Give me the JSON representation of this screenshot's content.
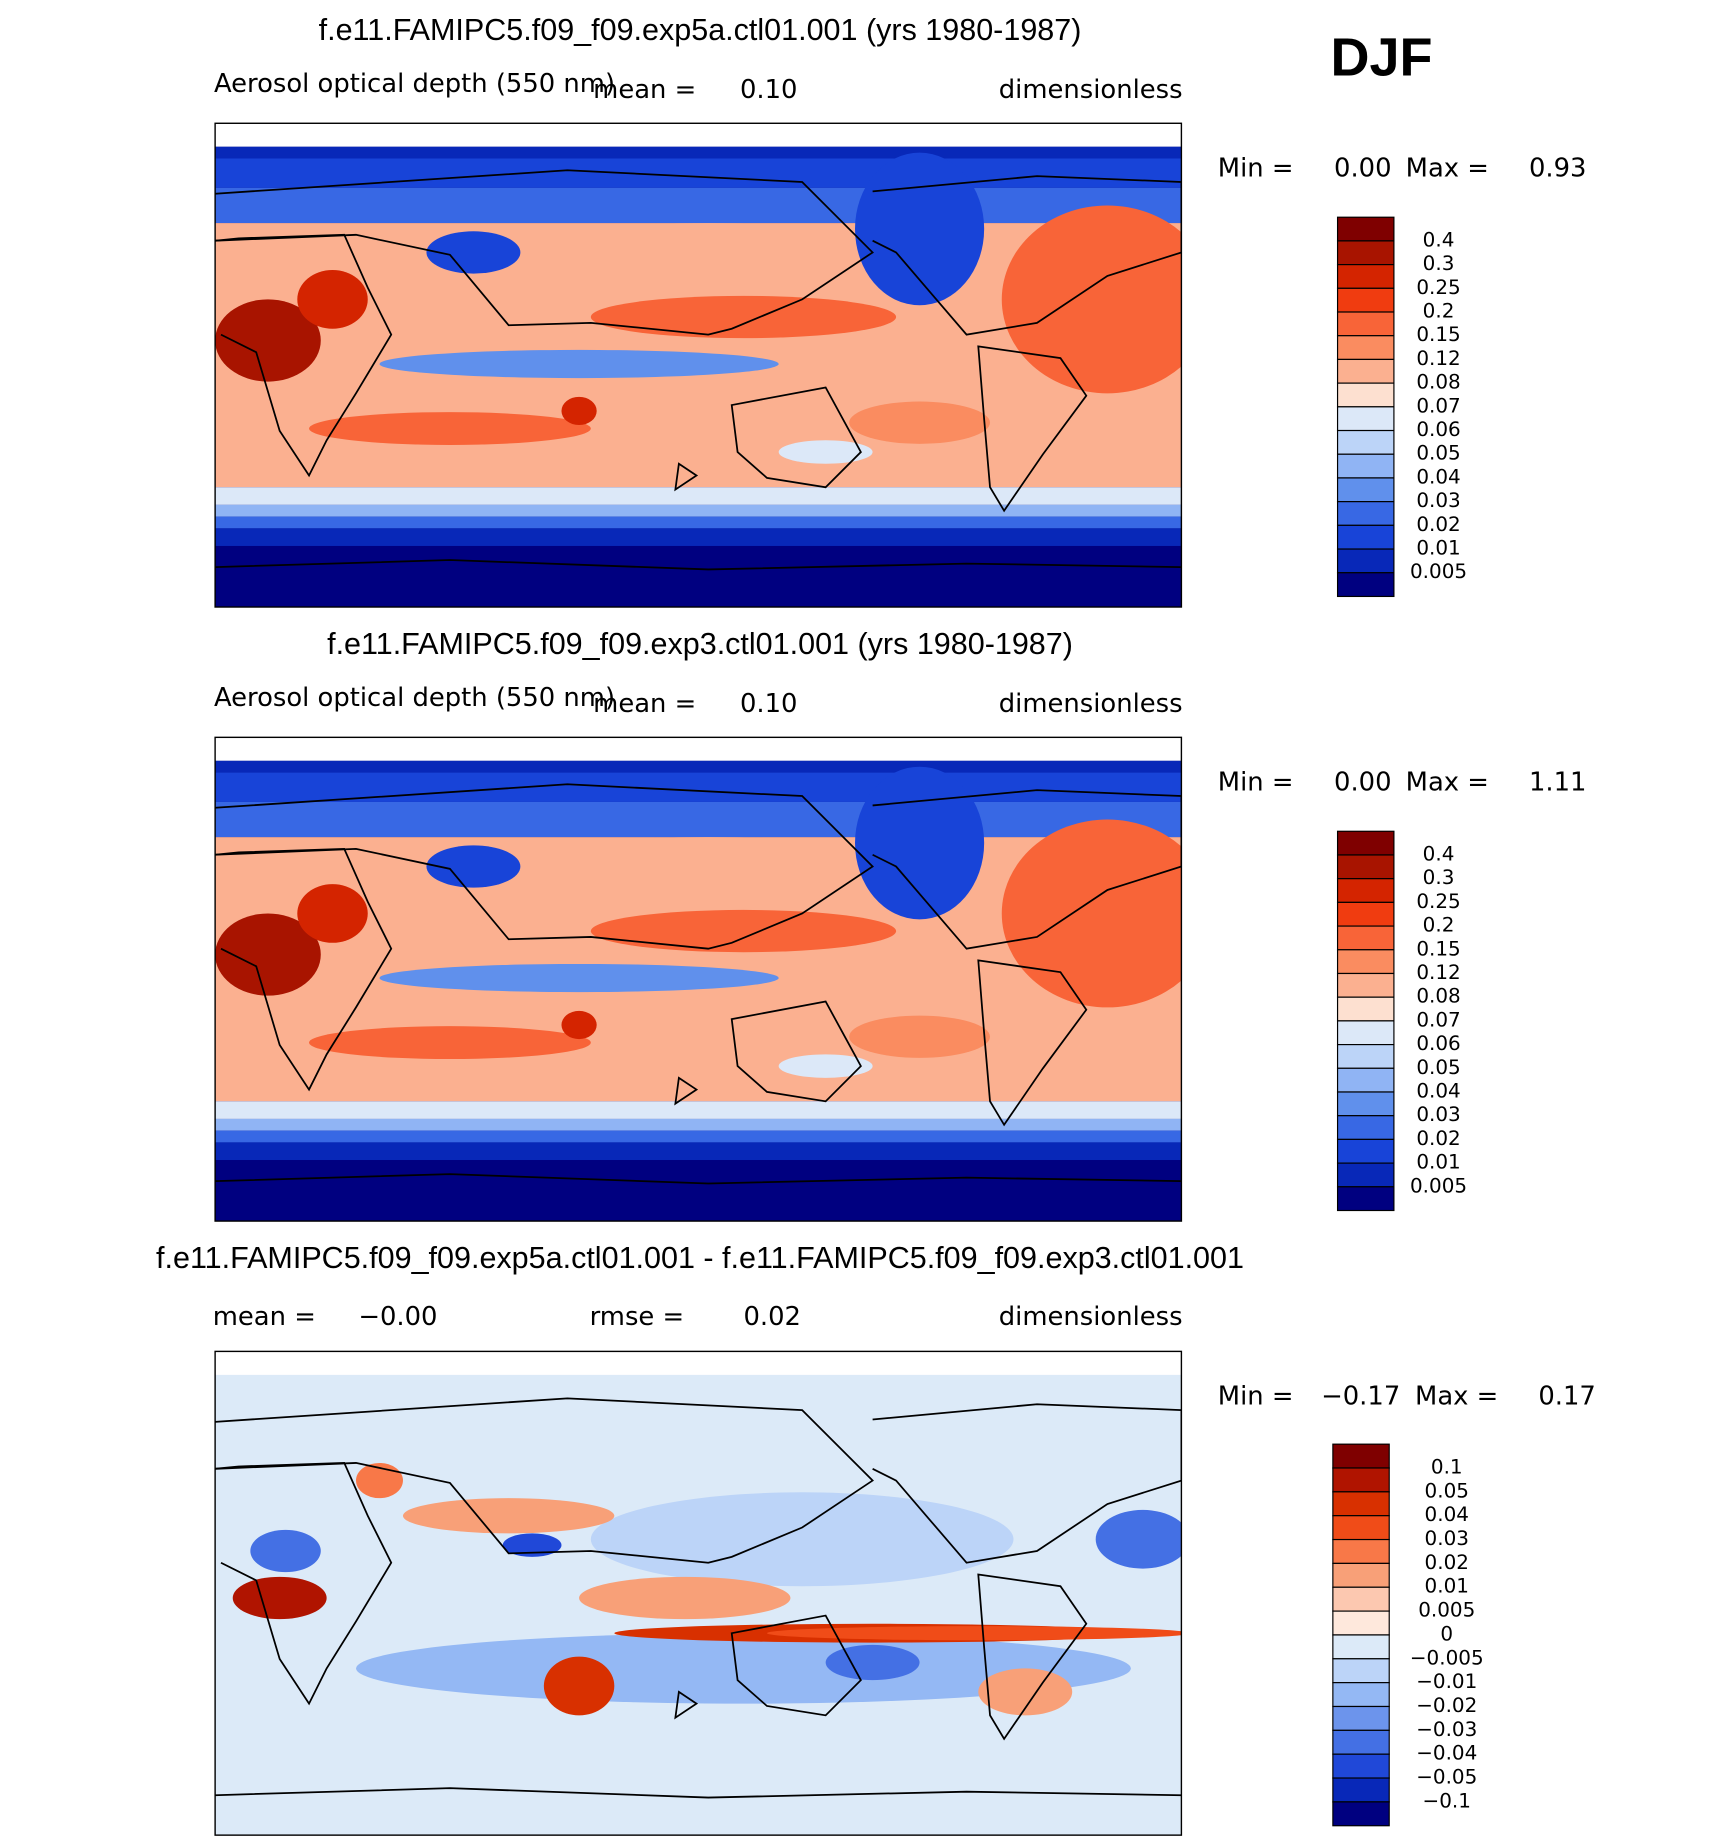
{
  "label": "DJF",
  "panels": [
    {
      "title": "f.e11.FAMIPC5.f09_f09.exp5a.ctl01.001 (yrs 1980-1987)",
      "left_text": "Aerosol optical depth (550 nm)",
      "mean_label": "mean =",
      "mean": "0.10",
      "units": "dimensionless",
      "min_label": "Min =",
      "min": "0.00",
      "max_label": "Max =",
      "max": "0.93",
      "levels": [
        "0.4",
        "0.3",
        "0.25",
        "0.2",
        "0.15",
        "0.12",
        "0.08",
        "0.07",
        "0.06",
        "0.05",
        "0.04",
        "0.03",
        "0.02",
        "0.01",
        "0.005"
      ],
      "colors": [
        "#7f0000",
        "#a81400",
        "#d42400",
        "#f03c10",
        "#f86438",
        "#fa8c60",
        "#fbb090",
        "#fde0d0",
        "#dce8f8",
        "#bcd4f8",
        "#90b4f4",
        "#6090ec",
        "#3868e4",
        "#1844d8",
        "#0828b8",
        "#000080"
      ]
    },
    {
      "title": "f.e11.FAMIPC5.f09_f09.exp3.ctl01.001 (yrs 1980-1987)",
      "left_text": "Aerosol optical depth (550 nm)",
      "mean_label": "mean =",
      "mean": "0.10",
      "units": "dimensionless",
      "min_label": "Min =",
      "min": "0.00",
      "max_label": "Max =",
      "max": "1.11",
      "levels": [
        "0.4",
        "0.3",
        "0.25",
        "0.2",
        "0.15",
        "0.12",
        "0.08",
        "0.07",
        "0.06",
        "0.05",
        "0.04",
        "0.03",
        "0.02",
        "0.01",
        "0.005"
      ],
      "colors": [
        "#7f0000",
        "#a81400",
        "#d42400",
        "#f03c10",
        "#f86438",
        "#fa8c60",
        "#fbb090",
        "#fde0d0",
        "#dce8f8",
        "#bcd4f8",
        "#90b4f4",
        "#6090ec",
        "#3868e4",
        "#1844d8",
        "#0828b8",
        "#000080"
      ]
    },
    {
      "title": "f.e11.FAMIPC5.f09_f09.exp5a.ctl01.001 - f.e11.FAMIPC5.f09_f09.exp3.ctl01.001",
      "mean_label": "mean =",
      "mean": "−0.00",
      "rmse_label": "rmse =",
      "rmse": "0.02",
      "units": "dimensionless",
      "min_label": "Min =",
      "min": "−0.17",
      "max_label": "Max =",
      "max": "0.17",
      "levels": [
        "0.1",
        "0.05",
        "0.04",
        "0.03",
        "0.02",
        "0.01",
        "0.005",
        "0",
        "−0.005",
        "−0.01",
        "−0.02",
        "−0.03",
        "−0.04",
        "−0.05",
        "−0.1"
      ],
      "colors": [
        "#7f0000",
        "#b01400",
        "#d83000",
        "#f04c18",
        "#f87848",
        "#f8a078",
        "#fcc8b0",
        "#fee8dc",
        "#dceaf8",
        "#bcd4f8",
        "#94b8f4",
        "#6c94ec",
        "#4470e4",
        "#2048d8",
        "#0828b8",
        "#000080"
      ]
    }
  ]
}
